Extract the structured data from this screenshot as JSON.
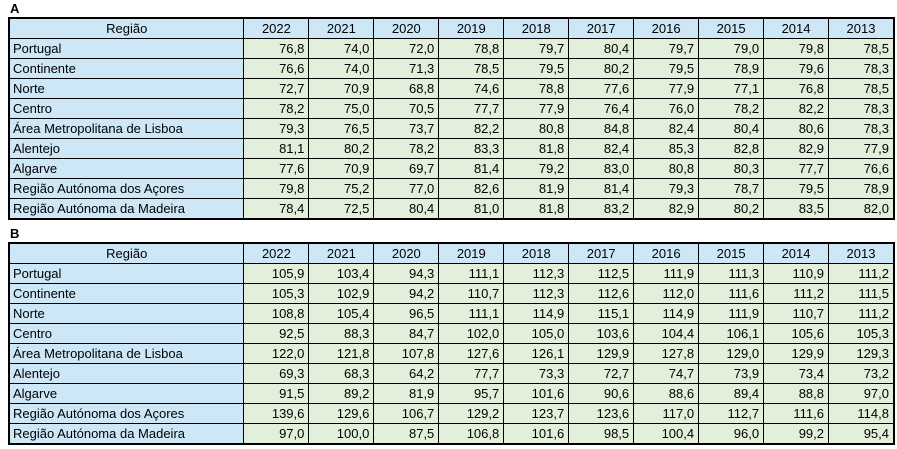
{
  "colors": {
    "header_fill": "#CDE7F7",
    "region_fill": "#CDE7F7",
    "value_fill": "#E2EFDA",
    "border_color": "#000000",
    "text_color": "#000000"
  },
  "chart_data": [
    {
      "type": "table",
      "label": "A",
      "columns": [
        "Região",
        "2022",
        "2021",
        "2020",
        "2019",
        "2018",
        "2017",
        "2016",
        "2015",
        "2014",
        "2013"
      ],
      "rows": [
        [
          "Portugal",
          "76,8",
          "74,0",
          "72,0",
          "78,8",
          "79,7",
          "80,4",
          "79,7",
          "79,0",
          "79,8",
          "78,5"
        ],
        [
          "Continente",
          "76,6",
          "74,0",
          "71,3",
          "78,5",
          "79,5",
          "80,2",
          "79,5",
          "78,9",
          "79,6",
          "78,3"
        ],
        [
          "Norte",
          "72,7",
          "70,9",
          "68,8",
          "74,6",
          "78,8",
          "77,6",
          "77,9",
          "77,1",
          "76,8",
          "78,5"
        ],
        [
          "Centro",
          "78,2",
          "75,0",
          "70,5",
          "77,7",
          "77,9",
          "76,4",
          "76,0",
          "78,2",
          "82,2",
          "78,3"
        ],
        [
          "Área Metropolitana de Lisboa",
          "79,3",
          "76,5",
          "73,7",
          "82,2",
          "80,8",
          "84,8",
          "82,4",
          "80,4",
          "80,6",
          "78,3"
        ],
        [
          "Alentejo",
          "81,1",
          "80,2",
          "78,2",
          "83,3",
          "81,8",
          "82,4",
          "85,3",
          "82,8",
          "82,9",
          "77,9"
        ],
        [
          "Algarve",
          "77,6",
          "70,9",
          "69,7",
          "81,4",
          "79,2",
          "83,0",
          "80,8",
          "80,3",
          "77,7",
          "76,6"
        ],
        [
          "Região Autónoma dos Açores",
          "79,8",
          "75,2",
          "77,0",
          "82,6",
          "81,9",
          "81,4",
          "79,3",
          "78,7",
          "79,5",
          "78,9"
        ],
        [
          "Região Autónoma da Madeira",
          "78,4",
          "72,5",
          "80,4",
          "81,0",
          "81,8",
          "83,2",
          "82,9",
          "80,2",
          "83,5",
          "82,0"
        ]
      ]
    },
    {
      "type": "table",
      "label": "B",
      "columns": [
        "Região",
        "2022",
        "2021",
        "2020",
        "2019",
        "2018",
        "2017",
        "2016",
        "2015",
        "2014",
        "2013"
      ],
      "rows": [
        [
          "Portugal",
          "105,9",
          "103,4",
          "94,3",
          "111,1",
          "112,3",
          "112,5",
          "111,9",
          "111,3",
          "110,9",
          "111,2"
        ],
        [
          "Continente",
          "105,3",
          "102,9",
          "94,2",
          "110,7",
          "112,3",
          "112,6",
          "112,0",
          "111,6",
          "111,2",
          "111,5"
        ],
        [
          "Norte",
          "108,8",
          "105,4",
          "96,5",
          "111,1",
          "114,9",
          "115,1",
          "114,9",
          "111,9",
          "110,7",
          "111,2"
        ],
        [
          "Centro",
          "92,5",
          "88,3",
          "84,7",
          "102,0",
          "105,0",
          "103,6",
          "104,4",
          "106,1",
          "105,6",
          "105,3"
        ],
        [
          "Área Metropolitana de Lisboa",
          "122,0",
          "121,8",
          "107,8",
          "127,6",
          "126,1",
          "129,9",
          "127,8",
          "129,0",
          "129,9",
          "129,3"
        ],
        [
          "Alentejo",
          "69,3",
          "68,3",
          "64,2",
          "77,7",
          "73,3",
          "72,7",
          "74,7",
          "73,9",
          "73,4",
          "73,2"
        ],
        [
          "Algarve",
          "91,5",
          "89,2",
          "81,9",
          "95,7",
          "101,6",
          "90,6",
          "88,6",
          "89,4",
          "88,8",
          "97,0"
        ],
        [
          "Região Autónoma dos Açores",
          "139,6",
          "129,6",
          "106,7",
          "129,2",
          "123,7",
          "123,6",
          "117,0",
          "112,7",
          "111,6",
          "114,8"
        ],
        [
          "Região Autónoma da Madeira",
          "97,0",
          "100,0",
          "87,5",
          "106,8",
          "101,6",
          "98,5",
          "100,4",
          "96,0",
          "99,2",
          "95,4"
        ]
      ]
    }
  ]
}
